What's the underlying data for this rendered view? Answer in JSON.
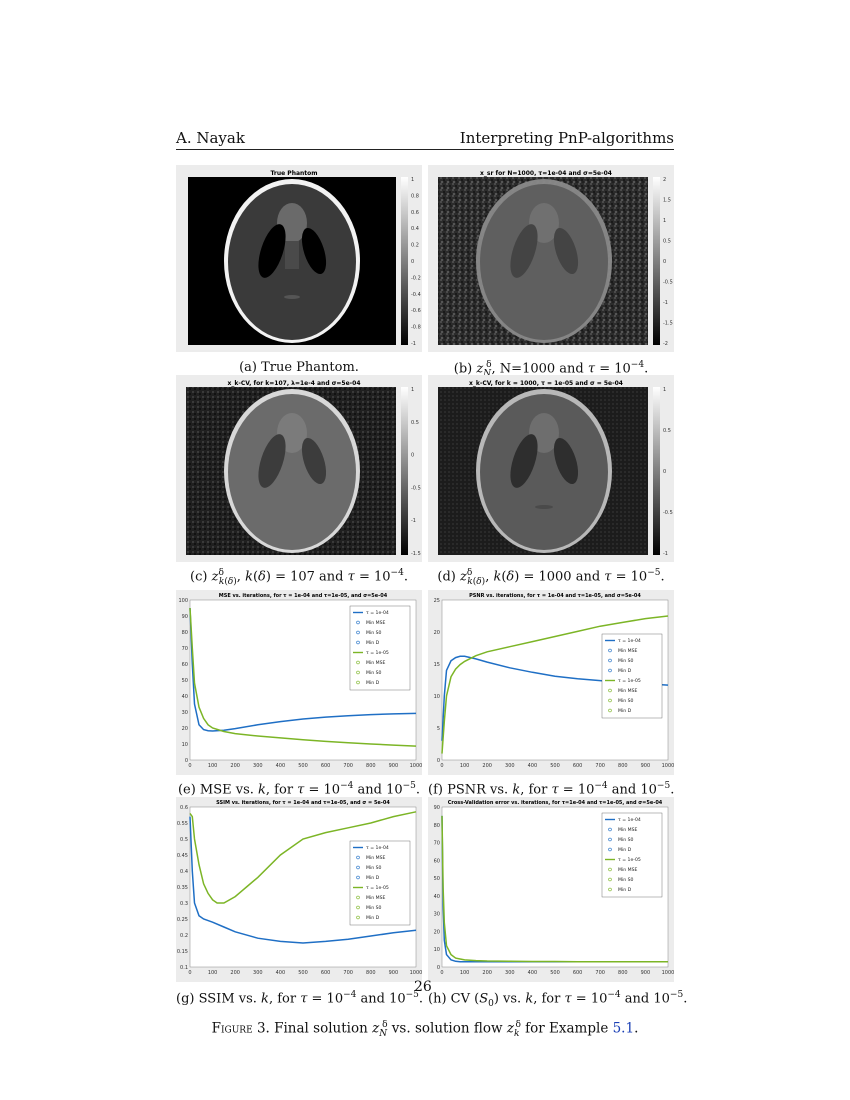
{
  "header": {
    "author": "A. Nayak",
    "title": "Interpreting PnP-algorithms"
  },
  "panels": {
    "a": {
      "plot_title": "True Phantom",
      "caption": "(a) True Phantom.",
      "colorbar_ticks": [
        "1",
        "0.8",
        "0.6",
        "0.4",
        "0.2",
        "0",
        "-0.2",
        "-0.4",
        "-0.6",
        "-0.8",
        "-1"
      ]
    },
    "b": {
      "plot_title": "x_sr for N=1000, τ=1e-04 and σ=5e-04",
      "caption": "(b) z_N^δ, N=1000 and τ = 10^-4.",
      "colorbar_ticks": [
        "2",
        "1.5",
        "1",
        "0.5",
        "0",
        "-0.5",
        "-1",
        "-1.5",
        "-2"
      ]
    },
    "c": {
      "plot_title": "x_k-CV, for k=107, λ=1e-4 and σ=5e-04",
      "caption": "(c) z_k(δ)^δ, k(δ) = 107 and τ = 10^-4.",
      "colorbar_ticks": [
        "1",
        "0.5",
        "0",
        "-0.5",
        "-1",
        "-1.5"
      ]
    },
    "d": {
      "plot_title": "x_k-CV, for k = 1000, τ = 1e-05 and σ = 5e-04",
      "caption": "(d) z_k(δ)^δ, k(δ) = 1000 and τ = 10^-5.",
      "colorbar_ticks": [
        "1",
        "0.5",
        "0",
        "-0.5",
        "-1"
      ]
    },
    "e": {
      "caption": "(e) MSE vs. k, for τ = 10^-4 and 10^-5."
    },
    "f": {
      "caption": "(f) PSNR vs. k, for τ = 10^-4 and 10^-5."
    },
    "g": {
      "caption": "(g) SSIM vs. k, for τ = 10^-4 and 10^-5."
    },
    "h": {
      "caption": "(h) CV (S0) vs. k, for τ = 10^-4 and 10^-5."
    }
  },
  "colors": {
    "series_1e04": "#1f6fc5",
    "series_1e05": "#7cb526",
    "panel_bg": "#ececec",
    "link": "#1a3fb5"
  },
  "chart_data": [
    {
      "id": "e",
      "type": "line",
      "title": "MSE vs. iterations, for τ = 1e-04 and τ=1e-05, and σ=5e-04",
      "xlim": [
        0,
        1000
      ],
      "ylim": [
        0,
        100
      ],
      "xticks": [
        0,
        100,
        200,
        300,
        400,
        500,
        600,
        700,
        800,
        900,
        1000
      ],
      "yticks": [
        0,
        10,
        20,
        30,
        40,
        50,
        60,
        70,
        80,
        90,
        100
      ],
      "legend": [
        "τ = 1e-04",
        "Min MSE",
        "Min S0",
        "Min D",
        "τ = 1e-05",
        "Min MSE",
        "Min S0",
        "Min D"
      ],
      "legend_position": "top-right",
      "series": [
        {
          "name": "τ = 1e-04",
          "x": [
            0,
            10,
            20,
            40,
            60,
            80,
            100,
            150,
            200,
            300,
            400,
            500,
            600,
            700,
            800,
            900,
            1000
          ],
          "y": [
            95,
            60,
            35,
            22,
            19,
            18.3,
            18.1,
            18.6,
            19.6,
            22,
            24,
            25.6,
            26.8,
            27.7,
            28.4,
            28.8,
            29.1
          ]
        },
        {
          "name": "τ = 1e-05",
          "x": [
            0,
            10,
            20,
            40,
            60,
            80,
            100,
            150,
            200,
            300,
            400,
            500,
            600,
            700,
            800,
            900,
            1000
          ],
          "y": [
            95,
            70,
            48,
            33,
            26,
            22,
            20,
            17.8,
            16.5,
            15,
            13.8,
            12.6,
            11.6,
            10.8,
            10,
            9.3,
            8.7
          ]
        }
      ]
    },
    {
      "id": "f",
      "type": "line",
      "title": "PSNR vs. iterations, for τ = 1e-04 and τ=1e-05, and σ=5e-04",
      "xlim": [
        0,
        1000
      ],
      "ylim": [
        0,
        25
      ],
      "xticks": [
        0,
        100,
        200,
        300,
        400,
        500,
        600,
        700,
        800,
        900,
        1000
      ],
      "yticks": [
        0,
        5,
        10,
        15,
        20,
        25
      ],
      "legend": [
        "τ = 1e-04",
        "Min MSE",
        "Min S0",
        "Min D",
        "τ = 1e-05",
        "Min MSE",
        "Min S0",
        "Min D"
      ],
      "legend_position": "right",
      "series": [
        {
          "name": "τ = 1e-04",
          "x": [
            0,
            10,
            20,
            40,
            60,
            80,
            100,
            150,
            200,
            300,
            400,
            500,
            600,
            700,
            800,
            900,
            1000
          ],
          "y": [
            3,
            10,
            14,
            15.5,
            16,
            16.2,
            16.2,
            15.8,
            15.3,
            14.4,
            13.7,
            13.1,
            12.7,
            12.4,
            12.1,
            11.9,
            11.7
          ]
        },
        {
          "name": "τ = 1e-05",
          "x": [
            0,
            10,
            20,
            40,
            60,
            80,
            100,
            150,
            200,
            300,
            400,
            500,
            600,
            700,
            800,
            900,
            1000
          ],
          "y": [
            1,
            6,
            10,
            13,
            14.2,
            14.9,
            15.4,
            16.3,
            16.9,
            17.7,
            18.5,
            19.3,
            20.1,
            20.9,
            21.5,
            22.1,
            22.5
          ]
        }
      ]
    },
    {
      "id": "g",
      "type": "line",
      "title": "SSIM vs. iterations, for τ = 1e-04 and τ=1e-05, and σ = 5e-04",
      "xlim": [
        0,
        1000
      ],
      "ylim": [
        0.1,
        0.6
      ],
      "xticks": [
        0,
        100,
        200,
        300,
        400,
        500,
        600,
        700,
        800,
        900,
        1000
      ],
      "yticks": [
        0.1,
        0.15,
        0.2,
        0.25,
        0.3,
        0.35,
        0.4,
        0.45,
        0.5,
        0.55,
        0.6
      ],
      "legend": [
        "τ = 1e-04",
        "Min MSE",
        "Min S0",
        "Min D",
        "τ = 1e-05",
        "Min MSE",
        "Min S0",
        "Min D"
      ],
      "legend_position": "right",
      "series": [
        {
          "name": "τ = 1e-04",
          "x": [
            0,
            10,
            20,
            40,
            60,
            80,
            100,
            150,
            200,
            300,
            400,
            500,
            600,
            700,
            800,
            900,
            1000
          ],
          "y": [
            0.57,
            0.4,
            0.3,
            0.26,
            0.25,
            0.245,
            0.24,
            0.225,
            0.21,
            0.19,
            0.18,
            0.175,
            0.18,
            0.187,
            0.197,
            0.207,
            0.215
          ]
        },
        {
          "name": "τ = 1e-05",
          "x": [
            0,
            10,
            20,
            40,
            60,
            80,
            100,
            120,
            150,
            200,
            250,
            300,
            400,
            500,
            600,
            700,
            800,
            900,
            1000
          ],
          "y": [
            0.58,
            0.57,
            0.5,
            0.42,
            0.36,
            0.33,
            0.31,
            0.3,
            0.3,
            0.32,
            0.35,
            0.38,
            0.45,
            0.5,
            0.52,
            0.535,
            0.55,
            0.57,
            0.585
          ]
        }
      ]
    },
    {
      "id": "h",
      "type": "line",
      "title": "Cross-Validation error vs. iterations, for τ=1e-04 and τ=1e-05, and σ=5e-04",
      "xlim": [
        0,
        1000
      ],
      "ylim": [
        0,
        90
      ],
      "xticks": [
        0,
        100,
        200,
        300,
        400,
        500,
        600,
        700,
        800,
        900,
        1000
      ],
      "yticks": [
        0,
        10,
        20,
        30,
        40,
        50,
        60,
        70,
        80,
        90
      ],
      "legend": [
        "τ = 1e-04",
        "Min MSE",
        "Min S0",
        "Min D",
        "τ = 1e-05",
        "Min MSE",
        "Min S0",
        "Min D"
      ],
      "legend_position": "top-right",
      "series": [
        {
          "name": "τ = 1e-04",
          "x": [
            0,
            5,
            10,
            20,
            40,
            60,
            80,
            100,
            150,
            200,
            300,
            400,
            500,
            600,
            700,
            800,
            900,
            1000
          ],
          "y": [
            85,
            35,
            15,
            7,
            4,
            3.2,
            3,
            3,
            3,
            3,
            3,
            3,
            3,
            3,
            3,
            3,
            3,
            3
          ]
        },
        {
          "name": "τ = 1e-05",
          "x": [
            0,
            5,
            10,
            20,
            40,
            60,
            80,
            100,
            150,
            200,
            300,
            400,
            500,
            600,
            700,
            800,
            900,
            1000
          ],
          "y": [
            85,
            45,
            25,
            12,
            7,
            5,
            4.5,
            4,
            3.6,
            3.4,
            3.2,
            3.1,
            3.1,
            3,
            3,
            3,
            3,
            3
          ]
        }
      ]
    }
  ],
  "page_number": "26",
  "figure_caption": {
    "label": "Figure 3.",
    "text_before": "Final solution z_N^δ vs. solution flow z_k^δ for Example ",
    "ref": "5.1",
    "text_after": "."
  }
}
